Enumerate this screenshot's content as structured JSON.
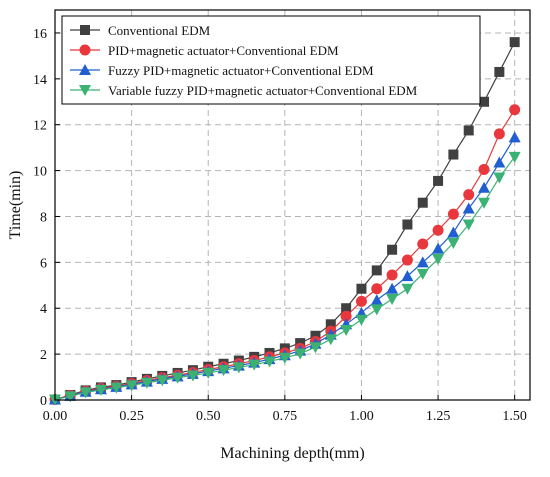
{
  "chart_data": {
    "type": "line",
    "xlabel": "Machining depth(mm)",
    "ylabel": "Time(min)",
    "xlim": [
      0,
      1.55
    ],
    "ylim": [
      0,
      17
    ],
    "xticks": [
      "0.00",
      "0.25",
      "0.50",
      "0.75",
      "1.00",
      "1.25",
      "1.50"
    ],
    "xtick_values": [
      0,
      0.25,
      0.5,
      0.75,
      1.0,
      1.25,
      1.5
    ],
    "yticks": [
      "0",
      "2",
      "4",
      "6",
      "8",
      "10",
      "12",
      "14",
      "16"
    ],
    "ytick_values": [
      0,
      2,
      4,
      6,
      8,
      10,
      12,
      14,
      16
    ],
    "grid": true,
    "legend_position": "top-left",
    "x": [
      0,
      0.05,
      0.1,
      0.15,
      0.2,
      0.25,
      0.3,
      0.35,
      0.4,
      0.45,
      0.5,
      0.55,
      0.6,
      0.65,
      0.7,
      0.75,
      0.8,
      0.85,
      0.9,
      0.95,
      1.0,
      1.05,
      1.1,
      1.15,
      1.2,
      1.25,
      1.3,
      1.35,
      1.4,
      1.45,
      1.5
    ],
    "series": [
      {
        "name": "Conventional EDM",
        "color": "#404040",
        "marker": "square",
        "values": [
          0.02,
          0.22,
          0.42,
          0.55,
          0.65,
          0.78,
          0.92,
          1.05,
          1.18,
          1.3,
          1.45,
          1.58,
          1.72,
          1.88,
          2.05,
          2.25,
          2.48,
          2.8,
          3.3,
          4.0,
          4.85,
          5.65,
          6.55,
          7.65,
          8.6,
          9.55,
          10.7,
          11.75,
          13.0,
          14.3,
          15.6
        ]
      },
      {
        "name": "PID+magnetic actuator+Conventional EDM",
        "color": "#e8383d",
        "marker": "circle",
        "values": [
          0.02,
          0.2,
          0.38,
          0.5,
          0.6,
          0.72,
          0.85,
          0.97,
          1.08,
          1.2,
          1.33,
          1.45,
          1.58,
          1.72,
          1.88,
          2.05,
          2.25,
          2.55,
          3.0,
          3.65,
          4.3,
          4.85,
          5.45,
          6.1,
          6.8,
          7.4,
          8.1,
          8.95,
          10.05,
          11.6,
          12.65
        ]
      },
      {
        "name": "Fuzzy PID+magnetic actuator+Conventional EDM",
        "color": "#1f5fd0",
        "marker": "triangle-up",
        "values": [
          0.02,
          0.18,
          0.36,
          0.47,
          0.57,
          0.68,
          0.8,
          0.92,
          1.03,
          1.14,
          1.26,
          1.38,
          1.5,
          1.63,
          1.78,
          1.95,
          2.15,
          2.45,
          2.85,
          3.3,
          3.8,
          4.35,
          4.85,
          5.4,
          6.0,
          6.6,
          7.3,
          8.35,
          9.25,
          10.35,
          11.45
        ]
      },
      {
        "name": "Variable fuzzy PID+magnetic actuator+Conventional EDM",
        "color": "#3bb273",
        "marker": "triangle-down",
        "values": [
          0.02,
          0.16,
          0.33,
          0.44,
          0.54,
          0.64,
          0.75,
          0.86,
          0.97,
          1.07,
          1.18,
          1.3,
          1.42,
          1.54,
          1.68,
          1.84,
          2.02,
          2.3,
          2.65,
          3.05,
          3.5,
          3.95,
          4.4,
          4.85,
          5.5,
          6.15,
          6.85,
          7.65,
          8.6,
          9.7,
          10.6
        ]
      }
    ]
  }
}
